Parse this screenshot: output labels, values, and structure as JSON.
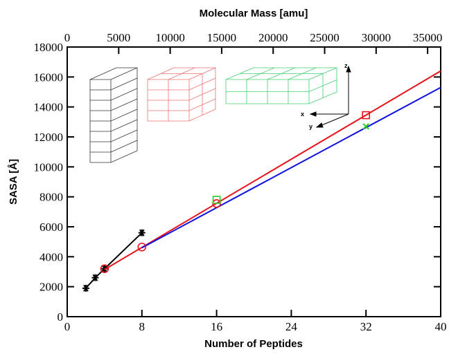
{
  "chart_data": {
    "type": "line",
    "xlabel": "Number of Peptides",
    "ylabel": "SASA [Å]",
    "x2label": "Molecular Mass [amu]",
    "xlim": [
      0,
      40
    ],
    "xticks": [
      0,
      8,
      16,
      24,
      32,
      40
    ],
    "ylim": [
      0,
      18000
    ],
    "yticks": [
      0,
      2000,
      4000,
      6000,
      8000,
      10000,
      12000,
      14000,
      16000,
      18000
    ],
    "x2lim": [
      0,
      36270
    ],
    "x2ticks": [
      0,
      5000,
      10000,
      15000,
      20000,
      25000,
      30000,
      35000
    ],
    "inset_axis_labels": [
      "x",
      "y",
      "z"
    ],
    "series": [
      {
        "color": "#000000",
        "marker": "star",
        "line": true,
        "x": [
          2,
          3,
          4,
          8
        ],
        "values": [
          1900,
          2600,
          3200,
          5600
        ]
      },
      {
        "color": "#e8101a",
        "marker": "none",
        "line": true,
        "x": [
          4,
          40
        ],
        "values": [
          3150,
          16400
        ]
      },
      {
        "color": "#1010e0",
        "marker": "none",
        "line": true,
        "x": [
          8,
          40
        ],
        "values": [
          4600,
          15300
        ]
      },
      {
        "color": "#e8101a",
        "marker": "circle",
        "line": false,
        "x": [
          4,
          8,
          16
        ],
        "values": [
          3200,
          4650,
          7550
        ]
      },
      {
        "color": "#e8101a",
        "marker": "square",
        "line": false,
        "x": [
          32
        ],
        "values": [
          13450
        ]
      },
      {
        "color": "#20d020",
        "marker": "square",
        "line": false,
        "x": [
          16
        ],
        "values": [
          7800
        ]
      },
      {
        "color": "#20d020",
        "marker": "cross",
        "line": false,
        "x": [
          32
        ],
        "values": [
          12700
        ]
      }
    ]
  }
}
